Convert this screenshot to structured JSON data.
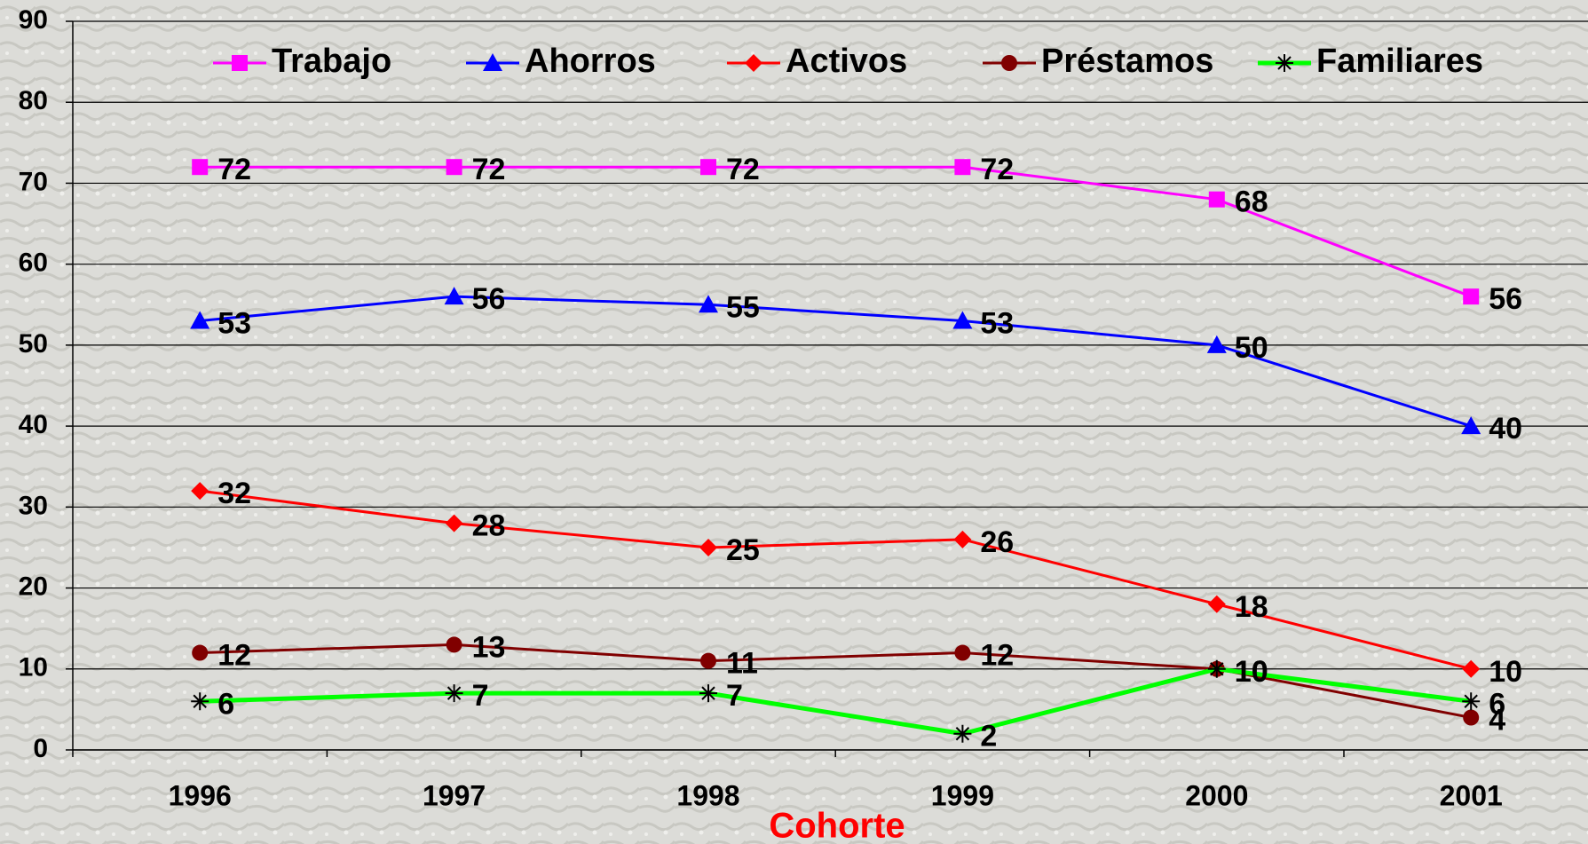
{
  "chart_data": {
    "type": "line",
    "x_label": "Cohorte",
    "categories": [
      "1996",
      "1997",
      "1998",
      "1999",
      "2000",
      "2001"
    ],
    "ylim": [
      0,
      90
    ],
    "yticks": [
      0,
      10,
      20,
      30,
      40,
      50,
      60,
      70,
      80,
      90
    ],
    "grid": true,
    "legend": "top",
    "series": [
      {
        "name": "Trabajo",
        "color": "#ff00ff",
        "marker": "square",
        "values": [
          72,
          72,
          72,
          72,
          68,
          56
        ]
      },
      {
        "name": "Ahorros",
        "color": "#0000ff",
        "marker": "triangle",
        "values": [
          53,
          56,
          55,
          53,
          50,
          40
        ]
      },
      {
        "name": "Activos",
        "color": "#ff0000",
        "marker": "diamond",
        "values": [
          32,
          28,
          25,
          26,
          18,
          10
        ]
      },
      {
        "name": "Préstamos",
        "color": "#800000",
        "marker": "circle",
        "values": [
          12,
          13,
          11,
          12,
          10,
          4
        ]
      },
      {
        "name": "Familiares",
        "color": "#00ff00",
        "marker": "asterisk",
        "values": [
          6,
          7,
          7,
          2,
          10,
          6
        ]
      }
    ]
  }
}
